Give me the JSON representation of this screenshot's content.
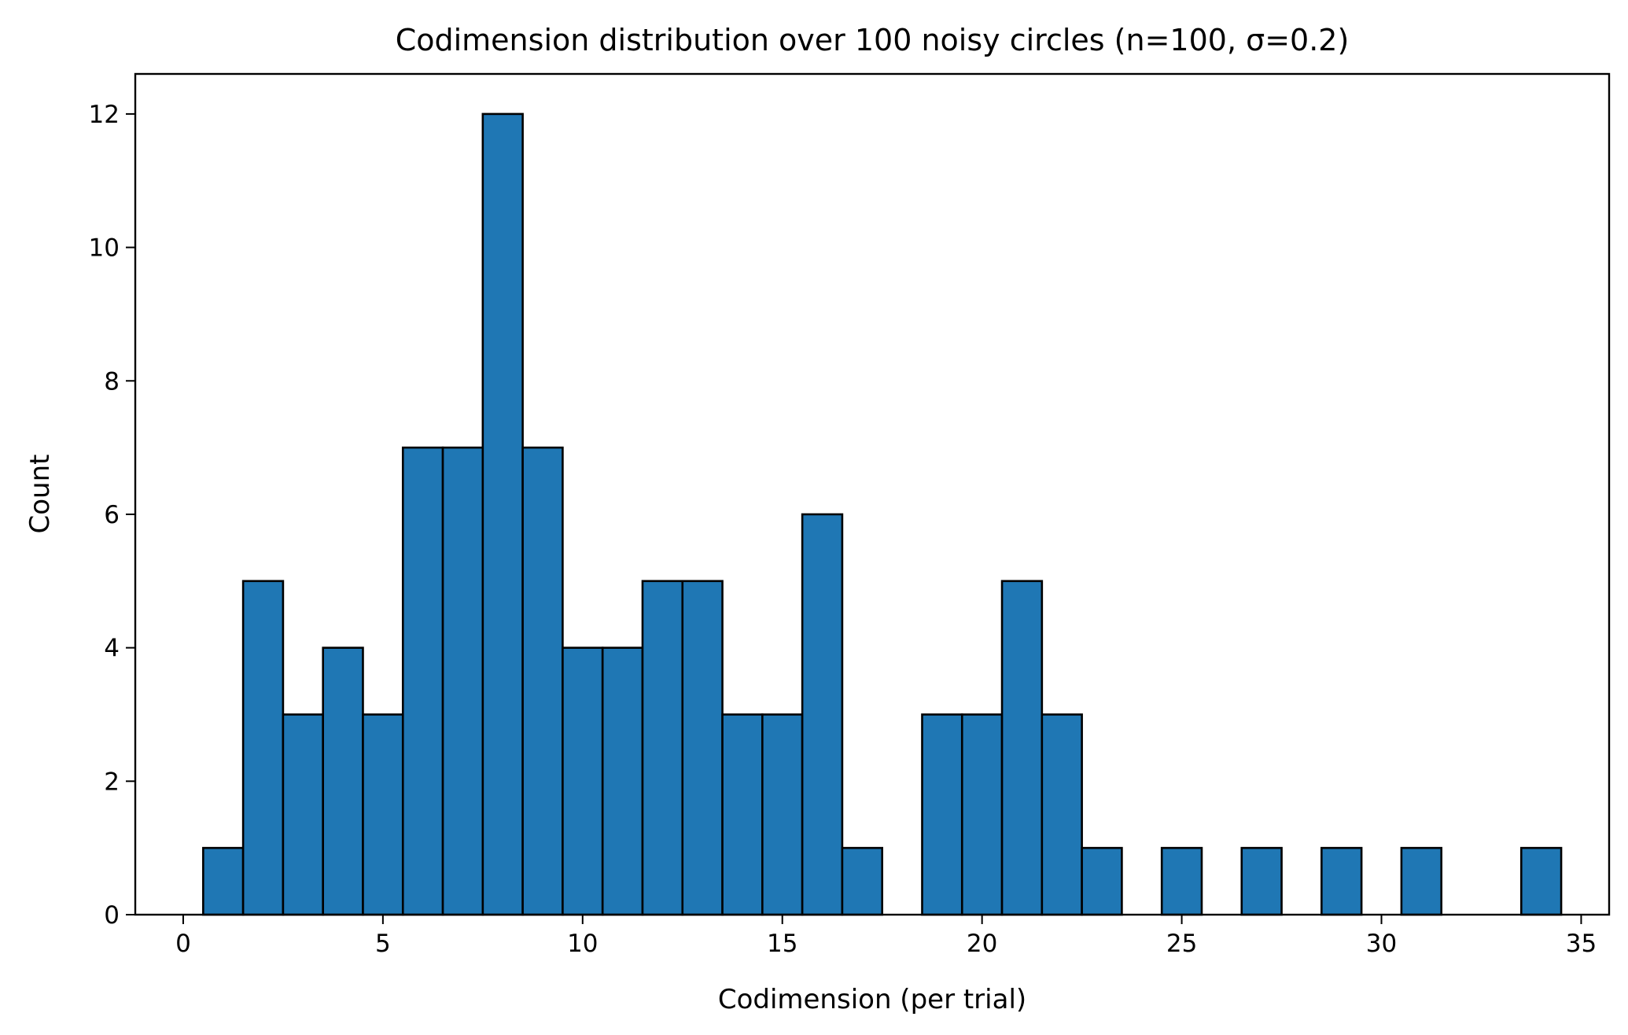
{
  "chart_data": {
    "type": "bar",
    "title": "Codimension distribution over 100 noisy circles (n=100, σ=0.2)",
    "xlabel": "Codimension (per trial)",
    "ylabel": "Count",
    "xlim": [
      -1.2,
      35.7
    ],
    "ylim": [
      0,
      12.6
    ],
    "bin_width": 1,
    "bins": [
      {
        "center": 1,
        "count": 1
      },
      {
        "center": 2,
        "count": 5
      },
      {
        "center": 3,
        "count": 3
      },
      {
        "center": 4,
        "count": 4
      },
      {
        "center": 5,
        "count": 3
      },
      {
        "center": 6,
        "count": 7
      },
      {
        "center": 7,
        "count": 7
      },
      {
        "center": 8,
        "count": 12
      },
      {
        "center": 9,
        "count": 7
      },
      {
        "center": 10,
        "count": 4
      },
      {
        "center": 11,
        "count": 4
      },
      {
        "center": 12,
        "count": 5
      },
      {
        "center": 13,
        "count": 5
      },
      {
        "center": 14,
        "count": 3
      },
      {
        "center": 15,
        "count": 3
      },
      {
        "center": 16,
        "count": 6
      },
      {
        "center": 17,
        "count": 1
      },
      {
        "center": 18,
        "count": 0
      },
      {
        "center": 19,
        "count": 3
      },
      {
        "center": 20,
        "count": 3
      },
      {
        "center": 21,
        "count": 5
      },
      {
        "center": 22,
        "count": 3
      },
      {
        "center": 23,
        "count": 1
      },
      {
        "center": 24,
        "count": 0
      },
      {
        "center": 25,
        "count": 1
      },
      {
        "center": 26,
        "count": 0
      },
      {
        "center": 27,
        "count": 1
      },
      {
        "center": 28,
        "count": 0
      },
      {
        "center": 29,
        "count": 1
      },
      {
        "center": 30,
        "count": 0
      },
      {
        "center": 31,
        "count": 1
      },
      {
        "center": 32,
        "count": 0
      },
      {
        "center": 33,
        "count": 0
      },
      {
        "center": 34,
        "count": 1
      }
    ],
    "xticks": [
      "0",
      "5",
      "10",
      "15",
      "20",
      "25",
      "30",
      "35"
    ],
    "yticks": [
      "0",
      "2",
      "4",
      "6",
      "8",
      "10",
      "12"
    ],
    "grid": false,
    "legend": "none",
    "bar_color": "#1f77b4",
    "edge_color": "#000000"
  }
}
